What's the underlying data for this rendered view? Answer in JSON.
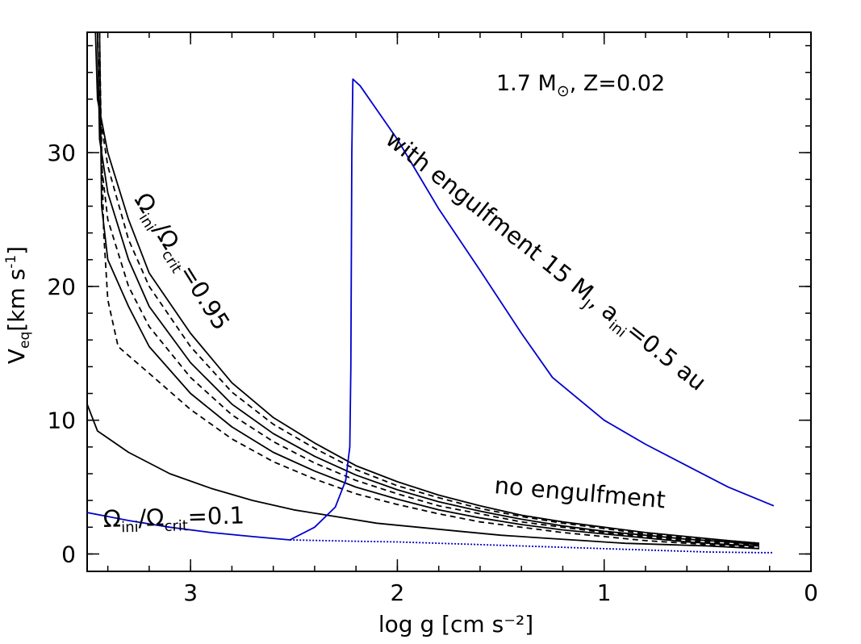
{
  "chart_data": {
    "type": "line",
    "title": "1.7 M⊙, Z=0.02",
    "title_parts": {
      "mass": "1.7 M",
      "sun_symbol": "⊙",
      "metallicity": ", Z=0.02"
    },
    "xlabel": "log g [cm s⁻²]",
    "ylabel": {
      "main": "V",
      "sub": "eq",
      "unit": "[km s",
      "exp": "-1",
      "close": "]"
    },
    "xlim": [
      3.5,
      0.0
    ],
    "ylim": [
      -1.3,
      39
    ],
    "x_ticks": [
      {
        "value": 3,
        "label": "3"
      },
      {
        "value": 2,
        "label": "2"
      },
      {
        "value": 1,
        "label": "1"
      },
      {
        "value": 0,
        "label": "0"
      }
    ],
    "y_ticks": [
      {
        "value": 0,
        "label": "0"
      },
      {
        "value": 10,
        "label": "10"
      },
      {
        "value": 20,
        "label": "20"
      },
      {
        "value": 30,
        "label": "30"
      }
    ],
    "x_minor_step": 0.2,
    "y_minor_step": 2,
    "annotations": {
      "engulf_a": "with engulfment 15 M",
      "engulf_a_sub": "J",
      "engulf_b": ", a",
      "engulf_b_sub": "ini",
      "engulf_c": "=0.5 au",
      "no_engulf": "no engulfment",
      "omega_high": {
        "a": "Ω",
        "a_sub": "ini",
        "b": "/Ω",
        "b_sub": "crit",
        "c": "=0.95"
      },
      "omega_low": {
        "a": "Ω",
        "a_sub": "ini",
        "b": "/Ω",
        "b_sub": "crit",
        "c": "=0.1"
      }
    },
    "series": [
      {
        "name": "solid-0.95",
        "color": "#000000",
        "dash": "none",
        "points": [
          [
            3.46,
            39
          ],
          [
            3.45,
            34
          ],
          [
            3.4,
            30
          ],
          [
            3.3,
            25
          ],
          [
            3.2,
            21
          ],
          [
            3.0,
            16.5
          ],
          [
            2.8,
            12.8
          ],
          [
            2.6,
            10.2
          ],
          [
            2.4,
            8.3
          ],
          [
            2.2,
            6.6
          ],
          [
            2.0,
            5.4
          ],
          [
            1.8,
            4.4
          ],
          [
            1.6,
            3.6
          ],
          [
            1.4,
            2.9
          ],
          [
            1.2,
            2.4
          ],
          [
            1.0,
            2.0
          ],
          [
            0.8,
            1.6
          ],
          [
            0.6,
            1.3
          ],
          [
            0.4,
            1.0
          ],
          [
            0.25,
            0.8
          ]
        ]
      },
      {
        "name": "dashed-0.95",
        "color": "#000000",
        "dash": "7,5",
        "points": [
          [
            3.45,
            39
          ],
          [
            3.44,
            33
          ],
          [
            3.4,
            29
          ],
          [
            3.3,
            23.5
          ],
          [
            3.2,
            20
          ],
          [
            3.0,
            15.5
          ],
          [
            2.8,
            12.1
          ],
          [
            2.6,
            9.7
          ],
          [
            2.4,
            7.9
          ],
          [
            2.2,
            6.3
          ],
          [
            2.0,
            5.1
          ],
          [
            1.8,
            4.2
          ],
          [
            1.6,
            3.4
          ],
          [
            1.4,
            2.8
          ],
          [
            1.2,
            2.3
          ],
          [
            1.0,
            1.9
          ],
          [
            0.8,
            1.5
          ],
          [
            0.6,
            1.2
          ],
          [
            0.4,
            1.0
          ],
          [
            0.25,
            0.8
          ]
        ]
      },
      {
        "name": "solid-2",
        "color": "#000000",
        "dash": "none",
        "points": [
          [
            3.45,
            39
          ],
          [
            3.44,
            31
          ],
          [
            3.4,
            27
          ],
          [
            3.3,
            22
          ],
          [
            3.2,
            18.5
          ],
          [
            3.0,
            14.3
          ],
          [
            2.8,
            11.2
          ],
          [
            2.6,
            9.0
          ],
          [
            2.4,
            7.3
          ],
          [
            2.2,
            5.9
          ],
          [
            2.0,
            4.8
          ],
          [
            1.8,
            3.9
          ],
          [
            1.6,
            3.2
          ],
          [
            1.4,
            2.6
          ],
          [
            1.2,
            2.1
          ],
          [
            1.0,
            1.7
          ],
          [
            0.8,
            1.4
          ],
          [
            0.6,
            1.1
          ],
          [
            0.4,
            0.9
          ],
          [
            0.25,
            0.7
          ]
        ]
      },
      {
        "name": "dashed-2",
        "color": "#000000",
        "dash": "7,5",
        "points": [
          [
            3.44,
            39
          ],
          [
            3.43,
            29
          ],
          [
            3.4,
            25
          ],
          [
            3.3,
            20
          ],
          [
            3.2,
            17
          ],
          [
            3.0,
            13.2
          ],
          [
            2.8,
            10.4
          ],
          [
            2.6,
            8.4
          ],
          [
            2.4,
            6.8
          ],
          [
            2.2,
            5.5
          ],
          [
            2.0,
            4.5
          ],
          [
            1.8,
            3.6
          ],
          [
            1.6,
            3.0
          ],
          [
            1.4,
            2.4
          ],
          [
            1.2,
            2.0
          ],
          [
            1.0,
            1.6
          ],
          [
            0.8,
            1.3
          ],
          [
            0.6,
            1.0
          ],
          [
            0.4,
            0.8
          ],
          [
            0.25,
            0.7
          ]
        ]
      },
      {
        "name": "solid-3",
        "color": "#000000",
        "dash": "none",
        "points": [
          [
            3.44,
            39
          ],
          [
            3.43,
            26
          ],
          [
            3.4,
            22
          ],
          [
            3.3,
            18.5
          ],
          [
            3.2,
            15.5
          ],
          [
            3.0,
            12.0
          ],
          [
            2.8,
            9.5
          ],
          [
            2.6,
            7.6
          ],
          [
            2.4,
            6.2
          ],
          [
            2.2,
            5.0
          ],
          [
            2.0,
            4.1
          ],
          [
            1.8,
            3.3
          ],
          [
            1.6,
            2.7
          ],
          [
            1.4,
            2.2
          ],
          [
            1.2,
            1.8
          ],
          [
            1.0,
            1.5
          ],
          [
            0.8,
            1.2
          ],
          [
            0.6,
            0.9
          ],
          [
            0.4,
            0.7
          ],
          [
            0.25,
            0.6
          ]
        ]
      },
      {
        "name": "dashed-3",
        "color": "#000000",
        "dash": "7,5",
        "points": [
          [
            3.44,
            37
          ],
          [
            3.42,
            24
          ],
          [
            3.4,
            19
          ],
          [
            3.35,
            15.5
          ],
          [
            3.2,
            13.5
          ],
          [
            3.0,
            10.8
          ],
          [
            2.8,
            8.6
          ],
          [
            2.6,
            6.9
          ],
          [
            2.4,
            5.6
          ],
          [
            2.2,
            4.5
          ],
          [
            2.0,
            3.7
          ],
          [
            1.8,
            3.0
          ],
          [
            1.6,
            2.4
          ],
          [
            1.4,
            2.0
          ],
          [
            1.2,
            1.6
          ],
          [
            1.0,
            1.3
          ],
          [
            0.8,
            1.0
          ],
          [
            0.6,
            0.8
          ],
          [
            0.4,
            0.6
          ],
          [
            0.25,
            0.5
          ]
        ]
      },
      {
        "name": "solid-0.1",
        "color": "#000000",
        "dash": "none",
        "points": [
          [
            3.5,
            11.2
          ],
          [
            3.45,
            9.2
          ],
          [
            3.3,
            7.6
          ],
          [
            3.1,
            6.0
          ],
          [
            2.9,
            4.9
          ],
          [
            2.7,
            4.0
          ],
          [
            2.5,
            3.3
          ],
          [
            2.3,
            2.8
          ],
          [
            2.1,
            2.3
          ],
          [
            1.9,
            2.0
          ],
          [
            1.7,
            1.7
          ],
          [
            1.5,
            1.4
          ],
          [
            1.3,
            1.2
          ],
          [
            1.1,
            1.0
          ],
          [
            0.9,
            0.8
          ],
          [
            0.7,
            0.7
          ],
          [
            0.5,
            0.6
          ],
          [
            0.25,
            0.4
          ]
        ]
      },
      {
        "name": "blue-engulfment",
        "color": "#0000cc",
        "dash": "none",
        "points": [
          [
            3.5,
            3.1
          ],
          [
            3.3,
            2.5
          ],
          [
            3.1,
            2.0
          ],
          [
            2.9,
            1.6
          ],
          [
            2.7,
            1.3
          ],
          [
            2.52,
            1.05
          ],
          [
            2.4,
            2.0
          ],
          [
            2.3,
            3.5
          ],
          [
            2.25,
            5.5
          ],
          [
            2.23,
            8.0
          ],
          [
            2.225,
            14
          ],
          [
            2.22,
            30
          ],
          [
            2.215,
            35.5
          ],
          [
            2.18,
            35.0
          ],
          [
            2.0,
            31.0
          ],
          [
            1.8,
            25.8
          ],
          [
            1.6,
            21.2
          ],
          [
            1.4,
            16.5
          ],
          [
            1.25,
            13.2
          ],
          [
            1.0,
            10.0
          ],
          [
            0.8,
            8.2
          ],
          [
            0.6,
            6.6
          ],
          [
            0.4,
            5.0
          ],
          [
            0.18,
            3.6
          ]
        ]
      },
      {
        "name": "blue-dotted",
        "color": "#0000cc",
        "dash": "2,2",
        "points": [
          [
            2.52,
            1.05
          ],
          [
            2.2,
            0.95
          ],
          [
            2.0,
            0.9
          ],
          [
            1.7,
            0.75
          ],
          [
            1.4,
            0.6
          ],
          [
            1.1,
            0.45
          ],
          [
            0.8,
            0.3
          ],
          [
            0.5,
            0.15
          ],
          [
            0.25,
            0.1
          ],
          [
            0.18,
            0.1
          ]
        ]
      }
    ]
  }
}
